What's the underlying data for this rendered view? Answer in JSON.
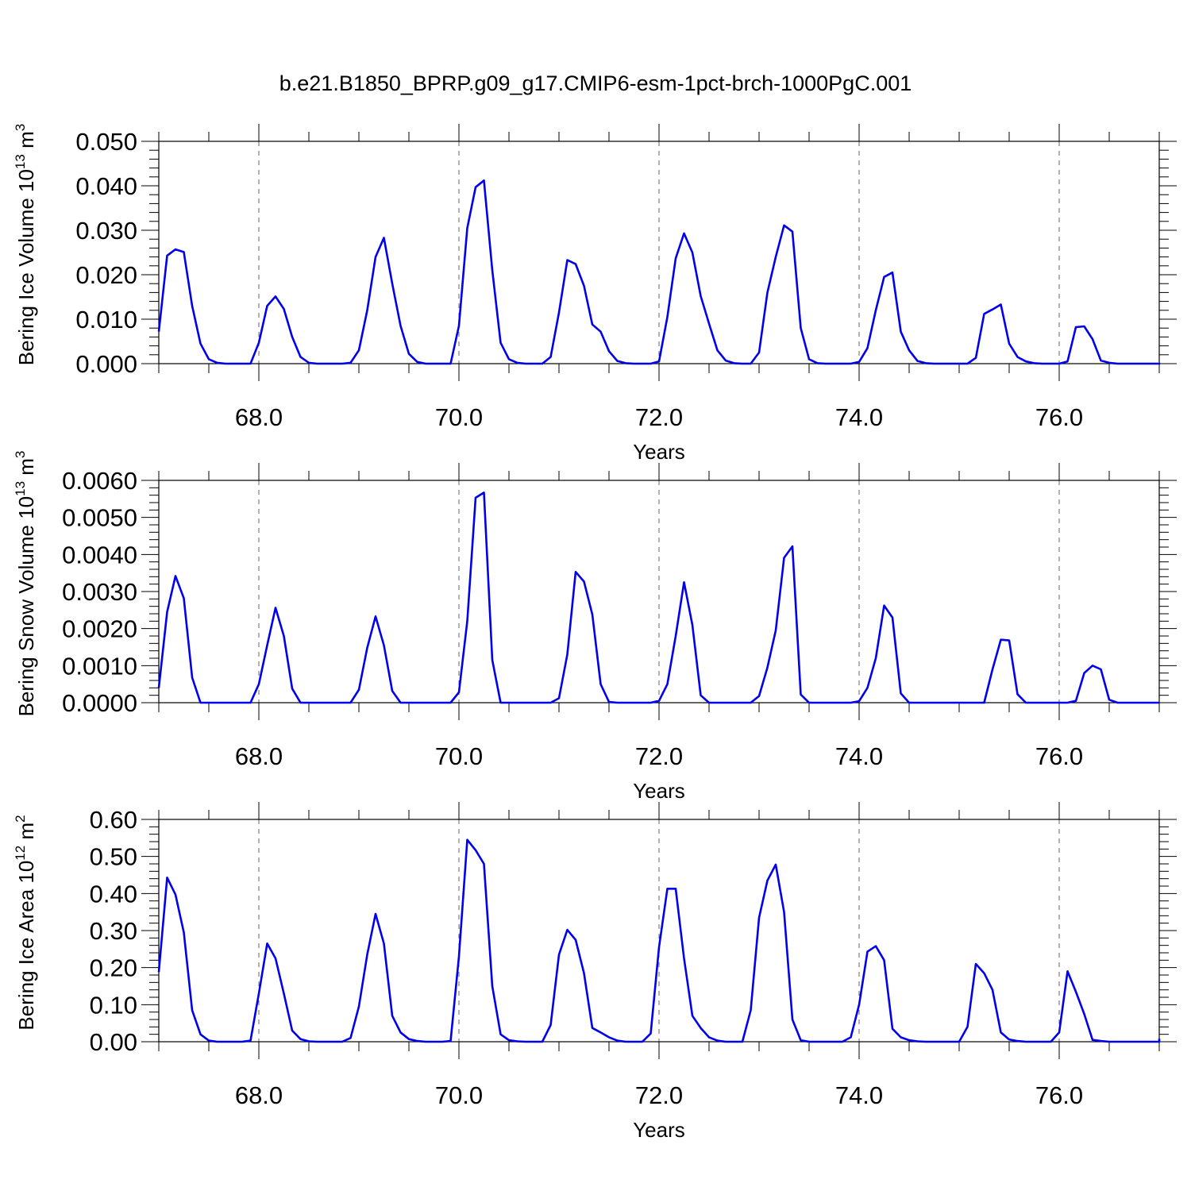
{
  "title": "b.e21.B1850_BPRP.g09_g17.CMIP6-esm-1pct-brch-1000PgC.001",
  "colors": {
    "line": "#0000ee",
    "axis": "#000000",
    "grid": "#666666"
  },
  "chart_data": [
    {
      "type": "line",
      "xlabel": "Years",
      "ylabel": {
        "prefix": "Bering Ice Volume 10",
        "sup1": "13",
        "mid": " m",
        "sup2": "3"
      },
      "xlim": [
        67.0,
        77.0
      ],
      "ylim": [
        0.0,
        0.05
      ],
      "yticks": [
        0.0,
        0.01,
        0.02,
        0.03,
        0.04,
        0.05
      ],
      "ytick_labels": [
        "0.000",
        "0.010",
        "0.020",
        "0.030",
        "0.040",
        "0.050"
      ],
      "xticks": [
        68,
        70,
        72,
        74,
        76
      ],
      "xtick_labels": [
        "68.0",
        "70.0",
        "72.0",
        "74.0",
        "76.0"
      ],
      "grid": "vertical-dashed-at-major-x",
      "x_start": 67.0,
      "x_step": 0.08333,
      "values": [
        0.0072,
        0.0243,
        0.0257,
        0.0251,
        0.013,
        0.0045,
        0.001,
        0.0002,
        0.0,
        0.0,
        0.0,
        0.0,
        0.0047,
        0.013,
        0.0151,
        0.0123,
        0.006,
        0.0015,
        0.0002,
        0.0,
        0.0,
        0.0,
        0.0,
        0.0002,
        0.003,
        0.012,
        0.024,
        0.0283,
        0.018,
        0.0085,
        0.0022,
        0.0004,
        0.0,
        0.0,
        0.0,
        0.0,
        0.0085,
        0.0305,
        0.0397,
        0.0412,
        0.021,
        0.0047,
        0.001,
        0.0002,
        0.0,
        0.0,
        0.0,
        0.0015,
        0.0115,
        0.0233,
        0.0224,
        0.0175,
        0.0088,
        0.0072,
        0.0028,
        0.0006,
        0.0001,
        0.0,
        0.0,
        0.0,
        0.0005,
        0.0105,
        0.0237,
        0.0293,
        0.025,
        0.0152,
        0.009,
        0.003,
        0.0007,
        0.0001,
        0.0,
        0.0,
        0.0025,
        0.016,
        0.024,
        0.0311,
        0.0297,
        0.008,
        0.001,
        0.0001,
        0.0,
        0.0,
        0.0,
        0.0,
        0.0004,
        0.0035,
        0.012,
        0.0195,
        0.0205,
        0.0072,
        0.003,
        0.0006,
        0.0001,
        0.0,
        0.0,
        0.0,
        0.0,
        0.0,
        0.0013,
        0.0112,
        0.0122,
        0.0133,
        0.0045,
        0.0015,
        0.0005,
        0.0001,
        0.0,
        0.0,
        0.0,
        0.0005,
        0.0082,
        0.0084,
        0.0055,
        0.0007,
        0.0002,
        0.0,
        0.0,
        0.0,
        0.0,
        0.0,
        0.0,
        0.0,
        0.0,
        0.0002
      ]
    },
    {
      "type": "line",
      "xlabel": "Years",
      "ylabel": {
        "prefix": "Bering Snow Volume 10",
        "sup1": "13",
        "mid": " m",
        "sup2": "3"
      },
      "xlim": [
        67.0,
        77.0
      ],
      "ylim": [
        0.0,
        0.006
      ],
      "yticks": [
        0.0,
        0.001,
        0.002,
        0.003,
        0.004,
        0.005,
        0.006
      ],
      "ytick_labels": [
        "0.0000",
        "0.0010",
        "0.0020",
        "0.0030",
        "0.0040",
        "0.0050",
        "0.0060"
      ],
      "xticks": [
        68,
        70,
        72,
        74,
        76
      ],
      "xtick_labels": [
        "68.0",
        "70.0",
        "72.0",
        "74.0",
        "76.0"
      ],
      "grid": "vertical-dashed-at-major-x",
      "x_start": 67.0,
      "x_step": 0.08333,
      "values": [
        0.0004,
        0.00245,
        0.00342,
        0.00282,
        0.00068,
        0.0,
        0.0,
        0.0,
        0.0,
        0.0,
        0.0,
        0.0,
        0.0005,
        0.00155,
        0.00256,
        0.0018,
        0.00038,
        0.0,
        0.0,
        0.0,
        0.0,
        0.0,
        0.0,
        0.0,
        0.00035,
        0.00148,
        0.00233,
        0.00155,
        0.00032,
        0.0,
        0.0,
        0.0,
        0.0,
        0.0,
        0.0,
        0.0,
        0.00028,
        0.0022,
        0.00553,
        0.00567,
        0.00115,
        0.0,
        0.0,
        0.0,
        0.0,
        0.0,
        0.0,
        0.0,
        0.00012,
        0.0013,
        0.00353,
        0.00327,
        0.00238,
        0.0005,
        2e-05,
        0.0,
        0.0,
        0.0,
        0.0,
        0.0,
        5e-05,
        0.0005,
        0.0018,
        0.00325,
        0.0021,
        0.0002,
        0.0,
        0.0,
        0.0,
        0.0,
        0.0,
        0.0,
        0.00018,
        0.00095,
        0.00195,
        0.00391,
        0.00422,
        0.00022,
        0.0,
        0.0,
        0.0,
        0.0,
        0.0,
        0.0,
        4e-05,
        0.0004,
        0.0012,
        0.00262,
        0.0023,
        0.00025,
        0.0,
        0.0,
        0.0,
        0.0,
        0.0,
        0.0,
        0.0,
        0.0,
        0.0,
        0.0,
        0.0009,
        0.0017,
        0.00168,
        0.00023,
        0.0,
        0.0,
        0.0,
        0.0,
        0.0,
        0.0,
        5e-05,
        0.0008,
        0.001,
        0.0009,
        8e-05,
        0.0,
        0.0,
        0.0,
        0.0,
        0.0,
        0.0,
        0.0,
        0.0,
        0.0,
        0.0,
        0.0
      ]
    },
    {
      "type": "line",
      "xlabel": "Years",
      "ylabel": {
        "prefix": "Bering Ice Area 10",
        "sup1": "12",
        "mid": " m",
        "sup2": "2"
      },
      "xlim": [
        67.0,
        77.0
      ],
      "ylim": [
        0.0,
        0.6
      ],
      "yticks": [
        0.0,
        0.1,
        0.2,
        0.3,
        0.4,
        0.5,
        0.6
      ],
      "ytick_labels": [
        "0.00",
        "0.10",
        "0.20",
        "0.30",
        "0.40",
        "0.50",
        "0.60"
      ],
      "xticks": [
        68,
        70,
        72,
        74,
        76
      ],
      "xtick_labels": [
        "68.0",
        "70.0",
        "72.0",
        "74.0",
        "76.0"
      ],
      "grid": "vertical-dashed-at-major-x",
      "x_start": 67.0,
      "x_step": 0.08333,
      "values": [
        0.188,
        0.443,
        0.397,
        0.295,
        0.085,
        0.02,
        0.003,
        0.0,
        0.0,
        0.0,
        0.0,
        0.003,
        0.13,
        0.265,
        0.225,
        0.13,
        0.03,
        0.007,
        0.001,
        0.0,
        0.0,
        0.0,
        0.0,
        0.01,
        0.095,
        0.235,
        0.345,
        0.265,
        0.07,
        0.025,
        0.007,
        0.002,
        0.0,
        0.0,
        0.0,
        0.002,
        0.23,
        0.545,
        0.517,
        0.48,
        0.15,
        0.02,
        0.004,
        0.001,
        0.0,
        0.0,
        0.0,
        0.045,
        0.235,
        0.302,
        0.275,
        0.185,
        0.037,
        0.025,
        0.012,
        0.003,
        0.0,
        0.0,
        0.0,
        0.022,
        0.255,
        0.413,
        0.413,
        0.225,
        0.07,
        0.037,
        0.012,
        0.003,
        0.0,
        0.0,
        0.0,
        0.085,
        0.335,
        0.435,
        0.478,
        0.35,
        0.06,
        0.004,
        0.0,
        0.0,
        0.0,
        0.0,
        0.0,
        0.012,
        0.1,
        0.243,
        0.258,
        0.22,
        0.035,
        0.012,
        0.004,
        0.001,
        0.0,
        0.0,
        0.0,
        0.0,
        0.0,
        0.04,
        0.21,
        0.185,
        0.14,
        0.025,
        0.006,
        0.002,
        0.0,
        0.0,
        0.0,
        0.0,
        0.025,
        0.19,
        0.135,
        0.075,
        0.005,
        0.002,
        0.0,
        0.0,
        0.0,
        0.0,
        0.0,
        0.0,
        0.0,
        0.0,
        0.008
      ]
    }
  ]
}
